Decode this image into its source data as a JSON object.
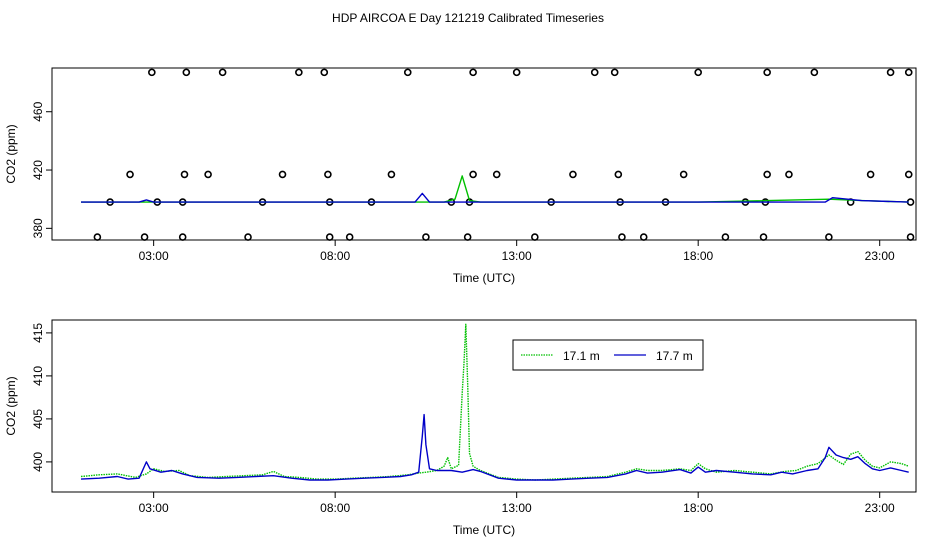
{
  "title": "HDP AIRCOA E  Day 121219  Calibrated Timeseries",
  "colors": {
    "green": "#00c000",
    "blue": "#0000c8",
    "axis": "#000000"
  },
  "chart_data": [
    {
      "type": "line",
      "xlabel": "Time (UTC)",
      "ylabel": "CO2 (ppm)",
      "x_tick_labels": [
        "03:00",
        "08:00",
        "13:00",
        "18:00",
        "23:00"
      ],
      "x_ticks": [
        3,
        8,
        13,
        18,
        23
      ],
      "xlim": [
        0.2,
        24.0
      ],
      "y_ticks": [
        380,
        420,
        460
      ],
      "ylim": [
        372,
        490
      ],
      "grid": false,
      "series": [
        {
          "color": "#00c000",
          "points": [
            [
              1.0,
              398
            ],
            [
              3.0,
              398
            ],
            [
              9.0,
              398
            ],
            [
              11.0,
              398
            ],
            [
              11.3,
              400
            ],
            [
              11.5,
              416
            ],
            [
              11.7,
              399
            ],
            [
              12.0,
              398
            ],
            [
              18.0,
              398
            ],
            [
              21.6,
              400
            ],
            [
              22.5,
              399
            ],
            [
              23.8,
              398
            ]
          ]
        },
        {
          "color": "#0000c8",
          "points": [
            [
              1.0,
              398
            ],
            [
              2.6,
              398
            ],
            [
              2.8,
              399.5
            ],
            [
              3.0,
              398
            ],
            [
              10.2,
              398
            ],
            [
              10.4,
              404
            ],
            [
              10.6,
              398
            ],
            [
              21.5,
              398
            ],
            [
              21.7,
              401
            ],
            [
              22.5,
              399
            ],
            [
              23.8,
              398
            ]
          ]
        }
      ],
      "markers_circle": [
        [
          1.45,
          374
        ],
        [
          2.75,
          374
        ],
        [
          3.8,
          374
        ],
        [
          5.6,
          374
        ],
        [
          7.85,
          374
        ],
        [
          8.4,
          374
        ],
        [
          10.5,
          374
        ],
        [
          11.65,
          374
        ],
        [
          13.5,
          374
        ],
        [
          15.9,
          374
        ],
        [
          16.5,
          374
        ],
        [
          18.75,
          374
        ],
        [
          19.8,
          374
        ],
        [
          21.6,
          374
        ],
        [
          23.85,
          374
        ],
        [
          1.8,
          398
        ],
        [
          3.1,
          398
        ],
        [
          3.8,
          398
        ],
        [
          6.0,
          398
        ],
        [
          7.85,
          398
        ],
        [
          9.0,
          398
        ],
        [
          11.2,
          398
        ],
        [
          11.7,
          398
        ],
        [
          13.95,
          398
        ],
        [
          15.85,
          398
        ],
        [
          17.1,
          398
        ],
        [
          19.3,
          398
        ],
        [
          19.85,
          398
        ],
        [
          22.2,
          398
        ],
        [
          23.85,
          398
        ],
        [
          2.35,
          417
        ],
        [
          3.85,
          417
        ],
        [
          4.5,
          417
        ],
        [
          6.55,
          417
        ],
        [
          7.8,
          417
        ],
        [
          9.55,
          417
        ],
        [
          11.8,
          417
        ],
        [
          12.45,
          417
        ],
        [
          14.55,
          417
        ],
        [
          15.8,
          417
        ],
        [
          17.6,
          417
        ],
        [
          19.9,
          417
        ],
        [
          20.5,
          417
        ],
        [
          22.75,
          417
        ],
        [
          23.8,
          417
        ],
        [
          2.95,
          487
        ],
        [
          3.9,
          487
        ],
        [
          4.9,
          487
        ],
        [
          7.0,
          487
        ],
        [
          7.7,
          487
        ],
        [
          10.0,
          487
        ],
        [
          11.8,
          487
        ],
        [
          13.0,
          487
        ],
        [
          15.15,
          487
        ],
        [
          15.7,
          487
        ],
        [
          18.0,
          487
        ],
        [
          19.9,
          487
        ],
        [
          21.2,
          487
        ],
        [
          23.3,
          487
        ],
        [
          23.8,
          487
        ]
      ]
    },
    {
      "type": "line",
      "xlabel": "Time (UTC)",
      "ylabel": "CO2 (ppm)",
      "x_tick_labels": [
        "03:00",
        "08:00",
        "13:00",
        "18:00",
        "23:00"
      ],
      "x_ticks": [
        3,
        8,
        13,
        18,
        23
      ],
      "xlim": [
        0.2,
        24.0
      ],
      "y_ticks": [
        400,
        405,
        410,
        415
      ],
      "ylim": [
        396.5,
        416.5
      ],
      "grid": false,
      "legend": {
        "position": "top-right-center"
      },
      "series": [
        {
          "name": "17.1 m",
          "color": "#00c000",
          "style": "dotted",
          "points": [
            [
              1.0,
              398.3
            ],
            [
              1.5,
              398.5
            ],
            [
              2.0,
              398.6
            ],
            [
              2.5,
              398.2
            ],
            [
              2.8,
              398.6
            ],
            [
              3.0,
              399.2
            ],
            [
              3.3,
              398.9
            ],
            [
              3.7,
              399.0
            ],
            [
              4.0,
              398.4
            ],
            [
              4.5,
              398.2
            ],
            [
              5.0,
              398.3
            ],
            [
              5.5,
              398.4
            ],
            [
              6.0,
              398.5
            ],
            [
              6.3,
              398.9
            ],
            [
              6.6,
              398.3
            ],
            [
              7.0,
              398.2
            ],
            [
              7.5,
              398.0
            ],
            [
              8.0,
              398.0
            ],
            [
              8.5,
              398.1
            ],
            [
              9.0,
              398.2
            ],
            [
              9.5,
              398.3
            ],
            [
              10.0,
              398.5
            ],
            [
              10.3,
              398.7
            ],
            [
              10.5,
              398.8
            ],
            [
              10.8,
              399.0
            ],
            [
              11.0,
              399.5
            ],
            [
              11.1,
              400.5
            ],
            [
              11.2,
              399.2
            ],
            [
              11.4,
              399.6
            ],
            [
              11.5,
              408.0
            ],
            [
              11.55,
              411.5
            ],
            [
              11.6,
              416.0
            ],
            [
              11.65,
              409.0
            ],
            [
              11.7,
              401.0
            ],
            [
              11.8,
              399.5
            ],
            [
              12.0,
              399.0
            ],
            [
              12.5,
              398.2
            ],
            [
              13.0,
              398.0
            ],
            [
              13.5,
              397.9
            ],
            [
              14.0,
              398.0
            ],
            [
              14.5,
              398.1
            ],
            [
              15.0,
              398.2
            ],
            [
              15.5,
              398.3
            ],
            [
              16.0,
              398.8
            ],
            [
              16.3,
              399.2
            ],
            [
              16.6,
              399.0
            ],
            [
              17.0,
              399.0
            ],
            [
              17.5,
              399.2
            ],
            [
              17.8,
              399.0
            ],
            [
              18.0,
              399.8
            ],
            [
              18.2,
              399.2
            ],
            [
              18.5,
              398.8
            ],
            [
              19.0,
              399.0
            ],
            [
              19.5,
              398.8
            ],
            [
              20.0,
              398.6
            ],
            [
              20.4,
              398.9
            ],
            [
              20.7,
              399.0
            ],
            [
              21.0,
              399.5
            ],
            [
              21.3,
              399.8
            ],
            [
              21.6,
              400.8
            ],
            [
              21.8,
              400.2
            ],
            [
              22.0,
              399.7
            ],
            [
              22.2,
              400.9
            ],
            [
              22.4,
              401.2
            ],
            [
              22.6,
              400.2
            ],
            [
              22.8,
              399.5
            ],
            [
              23.0,
              399.3
            ],
            [
              23.3,
              400.0
            ],
            [
              23.6,
              399.8
            ],
            [
              23.8,
              399.5
            ]
          ]
        },
        {
          "name": "17.7 m",
          "color": "#0000c8",
          "style": "solid",
          "points": [
            [
              1.0,
              398.0
            ],
            [
              1.5,
              398.1
            ],
            [
              2.0,
              398.3
            ],
            [
              2.3,
              398.0
            ],
            [
              2.6,
              398.1
            ],
            [
              2.8,
              400.0
            ],
            [
              2.9,
              399.2
            ],
            [
              3.2,
              398.8
            ],
            [
              3.5,
              399.0
            ],
            [
              3.8,
              398.6
            ],
            [
              4.2,
              398.2
            ],
            [
              4.8,
              398.1
            ],
            [
              5.3,
              398.2
            ],
            [
              5.8,
              398.3
            ],
            [
              6.3,
              398.4
            ],
            [
              6.8,
              398.1
            ],
            [
              7.3,
              397.9
            ],
            [
              7.8,
              397.9
            ],
            [
              8.3,
              398.0
            ],
            [
              8.8,
              398.1
            ],
            [
              9.3,
              398.2
            ],
            [
              9.8,
              398.3
            ],
            [
              10.1,
              398.5
            ],
            [
              10.3,
              398.8
            ],
            [
              10.4,
              403.0
            ],
            [
              10.45,
              405.5
            ],
            [
              10.5,
              402.0
            ],
            [
              10.6,
              399.2
            ],
            [
              10.8,
              399.0
            ],
            [
              11.2,
              399.0
            ],
            [
              11.5,
              398.8
            ],
            [
              11.8,
              399.1
            ],
            [
              12.0,
              398.9
            ],
            [
              12.5,
              398.1
            ],
            [
              13.0,
              397.9
            ],
            [
              13.5,
              397.9
            ],
            [
              14.0,
              397.9
            ],
            [
              14.5,
              398.0
            ],
            [
              15.0,
              398.1
            ],
            [
              15.5,
              398.2
            ],
            [
              16.0,
              398.6
            ],
            [
              16.3,
              399.0
            ],
            [
              16.6,
              398.7
            ],
            [
              17.0,
              398.8
            ],
            [
              17.5,
              399.1
            ],
            [
              17.8,
              398.7
            ],
            [
              18.0,
              399.4
            ],
            [
              18.2,
              398.8
            ],
            [
              18.5,
              399.0
            ],
            [
              19.0,
              398.8
            ],
            [
              19.5,
              398.6
            ],
            [
              20.0,
              398.5
            ],
            [
              20.3,
              398.8
            ],
            [
              20.6,
              398.6
            ],
            [
              21.0,
              399.0
            ],
            [
              21.3,
              399.2
            ],
            [
              21.5,
              400.5
            ],
            [
              21.6,
              401.7
            ],
            [
              21.8,
              400.8
            ],
            [
              22.0,
              400.5
            ],
            [
              22.2,
              400.3
            ],
            [
              22.4,
              400.6
            ],
            [
              22.6,
              399.8
            ],
            [
              22.8,
              399.2
            ],
            [
              23.0,
              399.0
            ],
            [
              23.3,
              399.3
            ],
            [
              23.6,
              399.0
            ],
            [
              23.8,
              398.8
            ]
          ]
        }
      ]
    }
  ]
}
